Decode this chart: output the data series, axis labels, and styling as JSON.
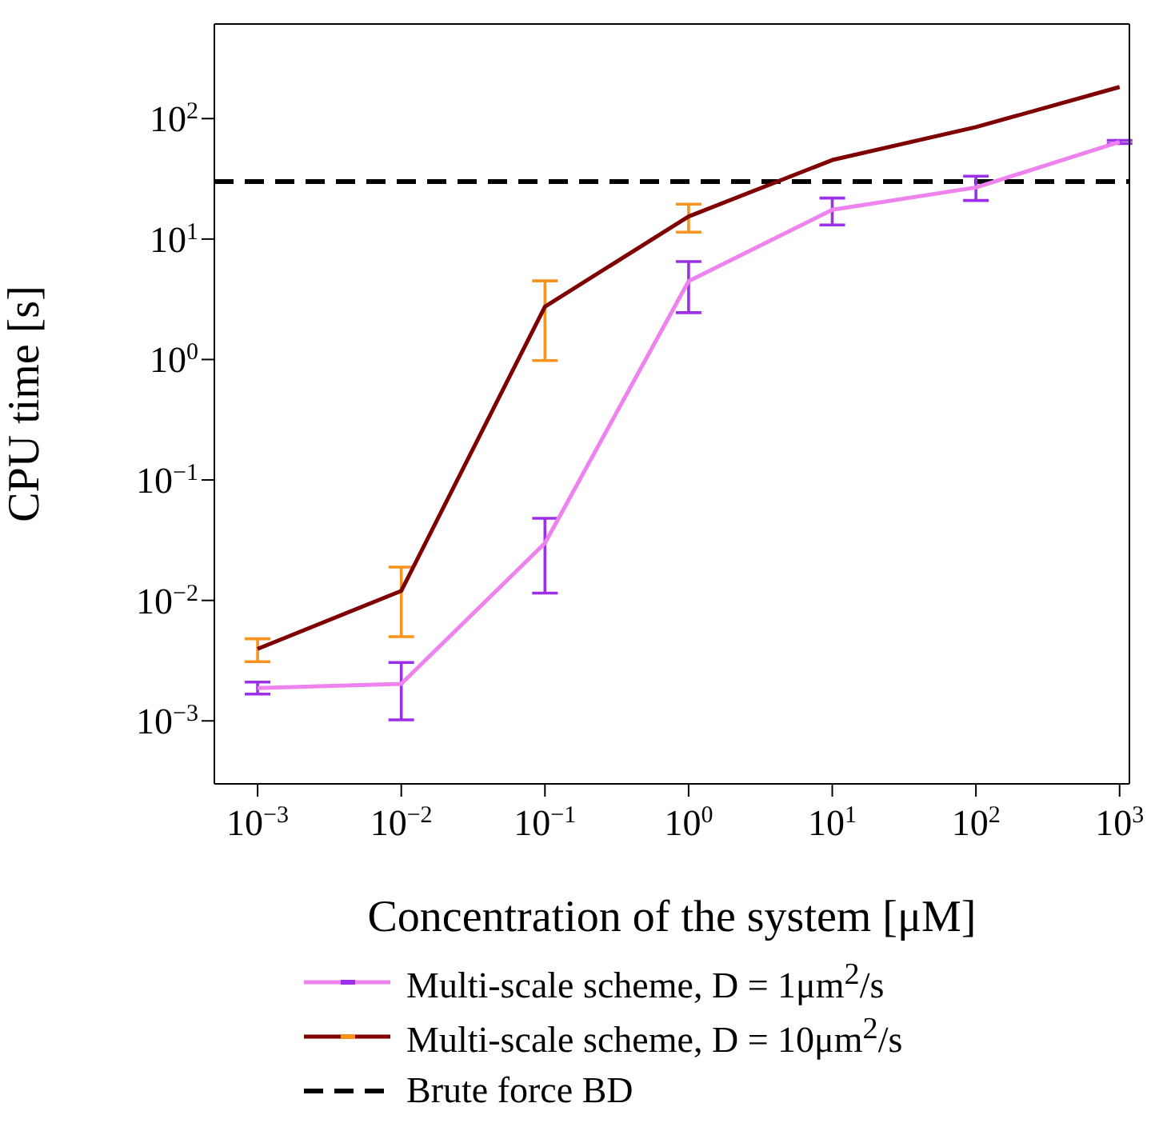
{
  "chart_data": {
    "type": "line",
    "xlabel": "Concentration of the system [μM]",
    "ylabel": "CPU time [s]",
    "log": "xy",
    "x": [
      0.001,
      0.01,
      0.1,
      1,
      10,
      100,
      1000
    ],
    "xlim": [
      0.0005,
      1170
    ],
    "ylim": [
      0.0003,
      610
    ],
    "xticks": [
      {
        "value": 0.001,
        "label": "10$^{−3}$"
      },
      {
        "value": 0.01,
        "label": "10$^{−2}$"
      },
      {
        "value": 0.1,
        "label": "10$^{−1}$"
      },
      {
        "value": 1,
        "label": "10$^{0}$"
      },
      {
        "value": 10,
        "label": "10$^{1}$"
      },
      {
        "value": 100,
        "label": "10$^{2}$"
      },
      {
        "value": 1000,
        "label": "10$^{3}$"
      }
    ],
    "yticks": [
      {
        "value": 0.001,
        "label": "10$^{−3}$"
      },
      {
        "value": 0.01,
        "label": "10$^{−2}$"
      },
      {
        "value": 0.1,
        "label": "10$^{−1}$"
      },
      {
        "value": 1,
        "label": "10$^{0}$"
      },
      {
        "value": 10,
        "label": "10$^{1}$"
      },
      {
        "value": 100,
        "label": "10$^{2}$"
      }
    ],
    "series": [
      {
        "name": "Multi-scale scheme, D = 1μm$^{2}$/s",
        "color": "#ee82ee",
        "colors": [
          "#9b30e8",
          "#9b30e8",
          "#9b30e8",
          "#9b30e8",
          "#9b30e8",
          "#9b30e8",
          "#9b30e8"
        ],
        "values": [
          0.00187,
          0.00203,
          0.0299,
          4.47,
          17.5,
          26.8,
          64
        ],
        "errors": [
          [
            0.00167,
            0.0021
          ],
          [
            0.00102,
            0.00305
          ],
          [
            0.0115,
            0.048
          ],
          [
            2.45,
            6.5
          ],
          [
            13.1,
            21.9
          ],
          [
            20.9,
            33.3
          ],
          [
            62,
            66
          ]
        ]
      },
      {
        "name": "Multi-scale scheme, D = 10μm$^{2}$/s",
        "color": "#7f0000",
        "colors": [
          "#f7931e",
          "#f7931e",
          "#f7931e",
          "#f7931e",
          "#f7931e",
          "#f7931e",
          "#f7931e"
        ],
        "values": [
          0.00396,
          0.012,
          2.75,
          15.4,
          45.3,
          85,
          183
        ],
        "errors": [
          [
            0.0031,
            0.0048
          ],
          [
            0.005,
            0.0189
          ],
          [
            0.98,
            4.5
          ],
          [
            11.4,
            19.5
          ],
          null,
          null,
          null
        ]
      }
    ],
    "ref_lines": [
      {
        "axis": "y",
        "value": 30,
        "label": "Brute force BD",
        "color": "#000000",
        "line_style": "dashed"
      }
    ],
    "marker": "none",
    "legend": "bottom"
  }
}
